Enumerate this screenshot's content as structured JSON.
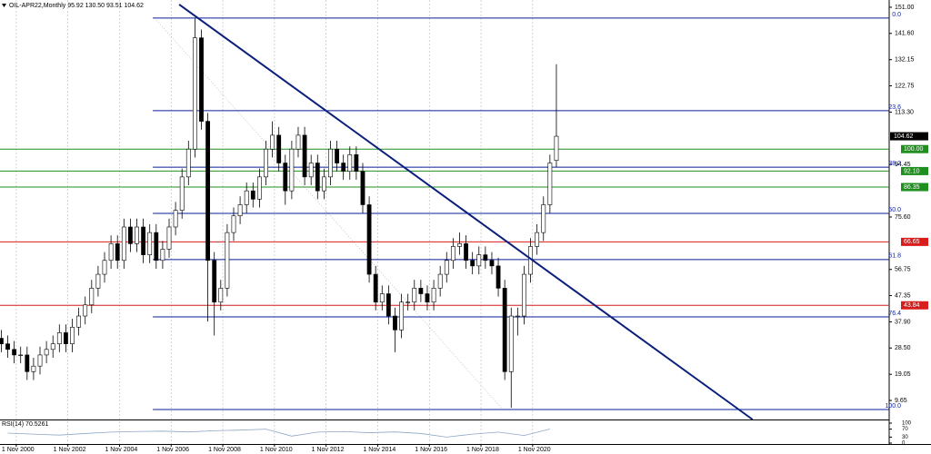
{
  "chart_data": {
    "type": "candlestick",
    "title": "OIL-APR22,Monthly  95.92 130.50 93.51 104.62",
    "xlim": [
      2000.2,
      2034.64
    ],
    "ylim": [
      2.8,
      153.6
    ],
    "xticks": [
      {
        "value": 2000.83,
        "label": "1 Nov 2000"
      },
      {
        "value": 2002.83,
        "label": "1 Nov 2002"
      },
      {
        "value": 2004.83,
        "label": "1 Nov 2004"
      },
      {
        "value": 2006.83,
        "label": "1 Nov 2006"
      },
      {
        "value": 2008.83,
        "label": "1 Nov 2008"
      },
      {
        "value": 2010.83,
        "label": "1 Nov 2010"
      },
      {
        "value": 2012.83,
        "label": "1 Nov 2012"
      },
      {
        "value": 2014.83,
        "label": "1 Nov 2014"
      },
      {
        "value": 2016.83,
        "label": "1 Nov 2016"
      },
      {
        "value": 2018.83,
        "label": "1 Nov 2018"
      },
      {
        "value": 2020.83,
        "label": "1 Nov 2020"
      }
    ],
    "yticks": [
      {
        "value": 151,
        "label": "151.00"
      },
      {
        "value": 141.6,
        "label": "141.60"
      },
      {
        "value": 132.15,
        "label": "132.15"
      },
      {
        "value": 122.75,
        "label": "122.75"
      },
      {
        "value": 113.3,
        "label": "113.30"
      },
      {
        "value": 94.45,
        "label": "94.45"
      },
      {
        "value": 75.6,
        "label": "75.60"
      },
      {
        "value": 56.75,
        "label": "56.75"
      },
      {
        "value": 47.35,
        "label": "47.35"
      },
      {
        "value": 37.9,
        "label": "37.90"
      },
      {
        "value": 28.5,
        "label": "28.50"
      },
      {
        "value": 19.05,
        "label": "19.05"
      },
      {
        "value": 9.65,
        "label": "9.65"
      }
    ],
    "grid": "x",
    "candles": {
      "x": [
        2000.25,
        2000.5,
        2000.75,
        2001,
        2001.25,
        2001.5,
        2001.75,
        2002,
        2002.25,
        2002.5,
        2002.75,
        2003,
        2003.25,
        2003.5,
        2003.75,
        2004,
        2004.25,
        2004.5,
        2004.75,
        2005,
        2005.25,
        2005.5,
        2005.75,
        2006,
        2006.25,
        2006.5,
        2006.75,
        2007,
        2007.25,
        2007.5,
        2007.75,
        2008,
        2008.25,
        2008.5,
        2008.75,
        2009,
        2009.25,
        2009.5,
        2009.75,
        2010,
        2010.25,
        2010.5,
        2010.75,
        2011,
        2011.25,
        2011.5,
        2011.75,
        2012,
        2012.25,
        2012.5,
        2012.75,
        2013,
        2013.25,
        2013.5,
        2013.75,
        2014,
        2014.25,
        2014.5,
        2014.75,
        2015,
        2015.25,
        2015.5,
        2015.75,
        2016,
        2016.25,
        2016.5,
        2016.75,
        2017,
        2017.25,
        2017.5,
        2017.75,
        2018,
        2018.25,
        2018.5,
        2018.75,
        2019,
        2019.25,
        2019.5,
        2019.75,
        2020,
        2020.25,
        2020.5,
        2020.75,
        2021,
        2021.25,
        2021.5,
        2021.75
      ],
      "open": [
        32,
        30,
        28,
        26,
        26,
        20,
        22,
        26,
        28,
        30,
        34,
        30,
        36,
        40,
        44,
        50,
        55,
        60,
        66,
        60,
        72,
        66,
        72,
        62,
        70,
        60,
        64,
        72,
        78,
        90,
        100,
        140,
        110,
        60,
        45,
        50,
        70,
        76,
        80,
        85,
        82,
        90,
        100,
        105,
        95,
        85,
        100,
        105,
        90,
        95,
        85,
        90,
        100,
        95,
        92,
        98,
        92,
        80,
        55,
        45,
        48,
        40,
        35,
        45,
        45,
        50,
        48,
        45,
        50,
        55,
        60,
        65,
        66,
        60,
        58,
        62,
        60,
        58,
        50,
        20,
        40,
        40,
        55,
        65,
        70,
        80,
        95.92
      ],
      "high": [
        35,
        33,
        31,
        29,
        29,
        25,
        29,
        31,
        33,
        37,
        37,
        39,
        43,
        47,
        53,
        58,
        63,
        69,
        69,
        75,
        75,
        75,
        75,
        73,
        73,
        67,
        75,
        81,
        93,
        103,
        147,
        143,
        113,
        63,
        53,
        73,
        79,
        83,
        88,
        88,
        93,
        103,
        110,
        108,
        98,
        103,
        108,
        108,
        98,
        98,
        93,
        103,
        103,
        98,
        101,
        101,
        95,
        83,
        58,
        51,
        51,
        43,
        48,
        48,
        53,
        53,
        51,
        53,
        58,
        63,
        68,
        70,
        69,
        63,
        65,
        65,
        63,
        61,
        53,
        43,
        43,
        58,
        68,
        73,
        83,
        98,
        130.5
      ],
      "low": [
        27,
        25,
        23,
        23,
        17,
        17,
        19,
        23,
        25,
        27,
        27,
        27,
        33,
        37,
        41,
        47,
        52,
        57,
        57,
        57,
        63,
        63,
        59,
        59,
        57,
        57,
        61,
        69,
        75,
        87,
        97,
        107,
        38,
        33,
        42,
        47,
        67,
        73,
        77,
        79,
        79,
        87,
        97,
        92,
        80,
        82,
        97,
        87,
        87,
        82,
        82,
        87,
        92,
        89,
        89,
        89,
        77,
        52,
        42,
        42,
        37,
        27,
        32,
        42,
        42,
        45,
        42,
        42,
        47,
        52,
        57,
        62,
        57,
        55,
        55,
        57,
        55,
        47,
        17,
        7,
        33,
        37,
        52,
        62,
        67,
        77,
        93.51
      ],
      "close": [
        30,
        28,
        26,
        26,
        20,
        22,
        26,
        28,
        30,
        34,
        30,
        36,
        40,
        44,
        50,
        55,
        60,
        66,
        60,
        72,
        66,
        72,
        62,
        70,
        60,
        64,
        72,
        78,
        90,
        100,
        140,
        110,
        60,
        45,
        50,
        70,
        76,
        80,
        85,
        82,
        90,
        100,
        105,
        95,
        85,
        100,
        105,
        90,
        95,
        85,
        90,
        100,
        95,
        92,
        98,
        92,
        80,
        55,
        45,
        48,
        40,
        35,
        45,
        45,
        50,
        48,
        45,
        50,
        55,
        60,
        65,
        66,
        60,
        58,
        62,
        60,
        58,
        50,
        20,
        40,
        40,
        55,
        65,
        70,
        80,
        95,
        104.62
      ]
    },
    "fib_start_x": 2006.12,
    "fib": [
      {
        "label": "0.0",
        "value": 147.1
      },
      {
        "label": "23.6",
        "value": 113.8
      },
      {
        "label": "38.2",
        "value": 93.5
      },
      {
        "label": "50.0",
        "value": 76.9
      },
      {
        "label": "61.8",
        "value": 60.3
      },
      {
        "label": "76.4",
        "value": 39.7
      },
      {
        "label": "100.0",
        "value": 6.4
      }
    ],
    "fib_color": "#0a1f9c",
    "levels": [
      {
        "value": 100,
        "label": "100.00",
        "color": "#1f8f1f"
      },
      {
        "value": 92.1,
        "label": "92.10",
        "color": "#1f8f1f"
      },
      {
        "value": 86.35,
        "label": "86.35",
        "color": "#1f8f1f"
      },
      {
        "value": 66.65,
        "label": "66.65",
        "color": "#d91c1c"
      },
      {
        "value": 43.84,
        "label": "43.84",
        "color": "#d91c1c"
      }
    ],
    "current": {
      "value": 104.62,
      "label": "104.62",
      "color": "#000000"
    },
    "trendline": {
      "x": [
        2007.14,
        2029.35
      ],
      "y": [
        152.0,
        2.8
      ],
      "color": "#0a1f7c"
    },
    "diagonal": {
      "x": [
        2006.19,
        2019.67
      ],
      "y": [
        147.1,
        6.4
      ]
    },
    "rsi": {
      "label": "RSI(14) 70.5261",
      "ylim": [
        0,
        100
      ],
      "yticks": [
        100,
        70,
        30,
        0
      ],
      "color": "#8fa6c8",
      "x": [
        2000.5,
        2001.5,
        2002.5,
        2003.5,
        2004.5,
        2005.5,
        2006.5,
        2007.5,
        2008.5,
        2009.5,
        2010.5,
        2011.5,
        2012.5,
        2013.5,
        2014.5,
        2015.5,
        2016.5,
        2017.5,
        2018.5,
        2019.5,
        2020.5,
        2021.5
      ],
      "values": [
        50,
        45,
        40,
        48,
        55,
        58,
        60,
        56,
        62,
        65,
        70,
        35,
        55,
        58,
        52,
        56,
        48,
        30,
        45,
        55,
        38,
        70.5261
      ]
    }
  }
}
